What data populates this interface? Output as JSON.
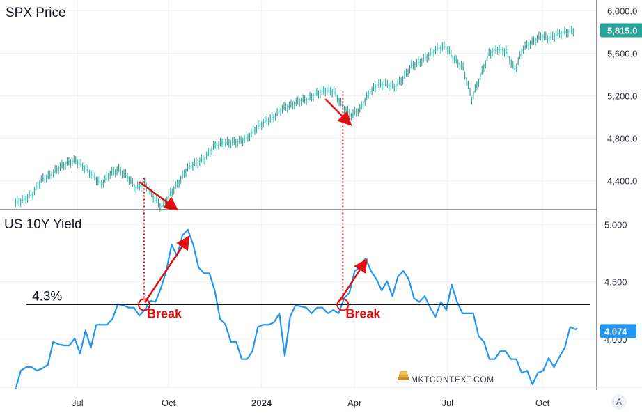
{
  "chart_data": [
    {
      "type": "line",
      "title": "SPX Price",
      "price_axis": {
        "ticks": [
          "6,000.0",
          "5,600.0",
          "5,200.0",
          "4,800.0",
          "4,400.0"
        ],
        "tick_values": [
          6000,
          5600,
          5200,
          4800,
          4400
        ],
        "ylim": [
          4130,
          6100
        ]
      },
      "last_value_label": "5,815.0",
      "last_value_color": "#26a69a",
      "series_color": "#26a69a",
      "series": [
        {
          "values": [
            [
              0,
              4195
            ],
            [
              5,
              4225
            ],
            [
              10,
              4280
            ],
            [
              15,
              4410
            ],
            [
              20,
              4450
            ],
            [
              25,
              4520
            ],
            [
              30,
              4570
            ],
            [
              35,
              4590
            ],
            [
              40,
              4525
            ],
            [
              45,
              4450
            ],
            [
              50,
              4370
            ],
            [
              55,
              4470
            ],
            [
              60,
              4505
            ],
            [
              65,
              4440
            ],
            [
              70,
              4330
            ],
            [
              75,
              4375
            ],
            [
              80,
              4250
            ],
            [
              85,
              4150
            ],
            [
              90,
              4280
            ],
            [
              95,
              4390
            ],
            [
              100,
              4520
            ],
            [
              105,
              4570
            ],
            [
              110,
              4610
            ],
            [
              115,
              4720
            ],
            [
              120,
              4755
            ],
            [
              125,
              4760
            ],
            [
              130,
              4770
            ],
            [
              135,
              4810
            ],
            [
              140,
              4900
            ],
            [
              145,
              4960
            ],
            [
              150,
              5000
            ],
            [
              155,
              5080
            ],
            [
              160,
              5110
            ],
            [
              165,
              5150
            ],
            [
              170,
              5170
            ],
            [
              175,
              5220
            ],
            [
              180,
              5250
            ],
            [
              185,
              5240
            ],
            [
              190,
              5100
            ],
            [
              195,
              5020
            ],
            [
              200,
              5070
            ],
            [
              205,
              5210
            ],
            [
              210,
              5300
            ],
            [
              215,
              5310
            ],
            [
              220,
              5280
            ],
            [
              225,
              5360
            ],
            [
              230,
              5480
            ],
            [
              235,
              5520
            ],
            [
              240,
              5580
            ],
            [
              245,
              5640
            ],
            [
              250,
              5660
            ],
            [
              255,
              5540
            ],
            [
              260,
              5460
            ],
            [
              265,
              5170
            ],
            [
              270,
              5380
            ],
            [
              275,
              5600
            ],
            [
              280,
              5640
            ],
            [
              285,
              5620
            ],
            [
              290,
              5440
            ],
            [
              295,
              5650
            ],
            [
              300,
              5700
            ],
            [
              305,
              5760
            ],
            [
              310,
              5740
            ],
            [
              315,
              5780
            ],
            [
              320,
              5800
            ],
            [
              325,
              5815
            ]
          ]
        }
      ]
    },
    {
      "type": "line",
      "title": "US 10Y Yield",
      "yield_axis": {
        "ticks": [
          "5.000",
          "4.500",
          "4.000"
        ],
        "tick_values": [
          5.0,
          4.5,
          4.0
        ],
        "ylim": [
          3.58,
          5.13
        ]
      },
      "last_value_label": "4.074",
      "last_value_color": "#2196f3",
      "series_color": "#2196f3",
      "series": [
        {
          "values": [
            [
              0,
              3.59
            ],
            [
              3,
              3.7
            ],
            [
              6,
              3.78
            ],
            [
              9,
              3.73
            ],
            [
              12,
              3.75
            ],
            [
              15,
              3.72
            ],
            [
              18,
              3.8
            ],
            [
              21,
              3.95
            ],
            [
              24,
              3.98
            ],
            [
              27,
              3.92
            ],
            [
              30,
              3.97
            ],
            [
              33,
              3.98
            ],
            [
              36,
              3.9
            ],
            [
              39,
              4.05
            ],
            [
              42,
              3.95
            ],
            [
              45,
              4.1
            ],
            [
              48,
              4.15
            ],
            [
              51,
              4.1
            ],
            [
              54,
              4.2
            ],
            [
              57,
              4.28
            ],
            [
              60,
              4.32
            ],
            [
              63,
              4.25
            ],
            [
              66,
              4.3
            ],
            [
              69,
              4.18
            ],
            [
              72,
              4.28
            ],
            [
              75,
              4.31
            ],
            [
              78,
              4.35
            ],
            [
              81,
              4.42
            ],
            [
              84,
              4.62
            ],
            [
              87,
              4.8
            ],
            [
              90,
              4.75
            ],
            [
              93,
              4.88
            ],
            [
              96,
              4.98
            ],
            [
              99,
              4.8
            ],
            [
              102,
              4.65
            ],
            [
              105,
              4.55
            ],
            [
              108,
              4.6
            ],
            [
              111,
              4.4
            ],
            [
              114,
              4.2
            ],
            [
              117,
              4.1
            ],
            [
              120,
              4.0
            ],
            [
              123,
              3.95
            ],
            [
              126,
              3.85
            ],
            [
              129,
              3.8
            ],
            [
              132,
              3.92
            ],
            [
              135,
              4.08
            ],
            [
              138,
              4.15
            ],
            [
              141,
              4.1
            ],
            [
              144,
              4.17
            ],
            [
              147,
              4.2
            ],
            [
              150,
              3.88
            ],
            [
              153,
              4.17
            ],
            [
              156,
              4.32
            ],
            [
              159,
              4.26
            ],
            [
              162,
              4.3
            ],
            [
              165,
              4.2
            ],
            [
              168,
              4.3
            ],
            [
              171,
              4.25
            ],
            [
              174,
              4.25
            ],
            [
              177,
              4.23
            ],
            [
              180,
              4.25
            ],
            [
              183,
              4.33
            ],
            [
              186,
              4.43
            ],
            [
              189,
              4.57
            ],
            [
              192,
              4.65
            ],
            [
              195,
              4.68
            ],
            [
              198,
              4.62
            ],
            [
              201,
              4.5
            ],
            [
              204,
              4.45
            ],
            [
              207,
              4.48
            ],
            [
              210,
              4.4
            ],
            [
              213,
              4.52
            ],
            [
              216,
              4.62
            ],
            [
              219,
              4.5
            ],
            [
              222,
              4.38
            ],
            [
              225,
              4.3
            ],
            [
              228,
              4.4
            ],
            [
              231,
              4.25
            ],
            [
              234,
              4.22
            ],
            [
              237,
              4.3
            ],
            [
              240,
              4.28
            ],
            [
              243,
              4.45
            ],
            [
              246,
              4.35
            ],
            [
              249,
              4.2
            ],
            [
              252,
              4.25
            ],
            [
              255,
              4.2
            ],
            [
              258,
              4.05
            ],
            [
              261,
              3.95
            ],
            [
              264,
              3.85
            ],
            [
              267,
              3.8
            ],
            [
              270,
              3.92
            ],
            [
              273,
              3.87
            ],
            [
              276,
              3.85
            ],
            [
              279,
              3.8
            ],
            [
              282,
              3.73
            ],
            [
              285,
              3.7
            ],
            [
              288,
              3.63
            ],
            [
              291,
              3.68
            ],
            [
              294,
              3.75
            ],
            [
              297,
              3.81
            ],
            [
              300,
              3.78
            ],
            [
              303,
              3.82
            ],
            [
              306,
              3.95
            ],
            [
              309,
              4.08
            ],
            [
              312,
              4.11
            ],
            [
              313,
              4.07
            ]
          ]
        }
      ]
    }
  ],
  "x_axis": {
    "ticks": [
      {
        "label": "Jul",
        "x": 32
      },
      {
        "label": "Oct",
        "x": 79
      },
      {
        "label": "2024",
        "x": 127
      },
      {
        "label": "Apr",
        "x": 175
      },
      {
        "label": "Jul",
        "x": 223
      },
      {
        "label": "Oct",
        "x": 272
      }
    ],
    "xlim": [
      -8,
      300
    ]
  },
  "annotations": {
    "support_level_label": "4.3%",
    "support_level_value": 4.3,
    "break_label": "Break",
    "breaks": [
      {
        "x": 70,
        "yield": 4.3,
        "spx": 4440
      },
      {
        "x": 177,
        "yield": 4.3,
        "spx": 5240
      }
    ],
    "spx_down_arrows": [
      {
        "from": [
          72,
          4390
        ],
        "to": [
          93,
          4140
        ]
      },
      {
        "from": [
          180,
          5170
        ],
        "to": [
          194,
          4940
        ]
      }
    ],
    "yield_up_arrows": [
      {
        "from": [
          72,
          4.32
        ],
        "to": [
          96,
          4.88
        ]
      },
      {
        "from": [
          180,
          4.32
        ],
        "to": [
          195,
          4.68
        ]
      }
    ],
    "color": "#e01010"
  },
  "watermark": "MKTCONTEXT.COM",
  "corner_button": "A"
}
